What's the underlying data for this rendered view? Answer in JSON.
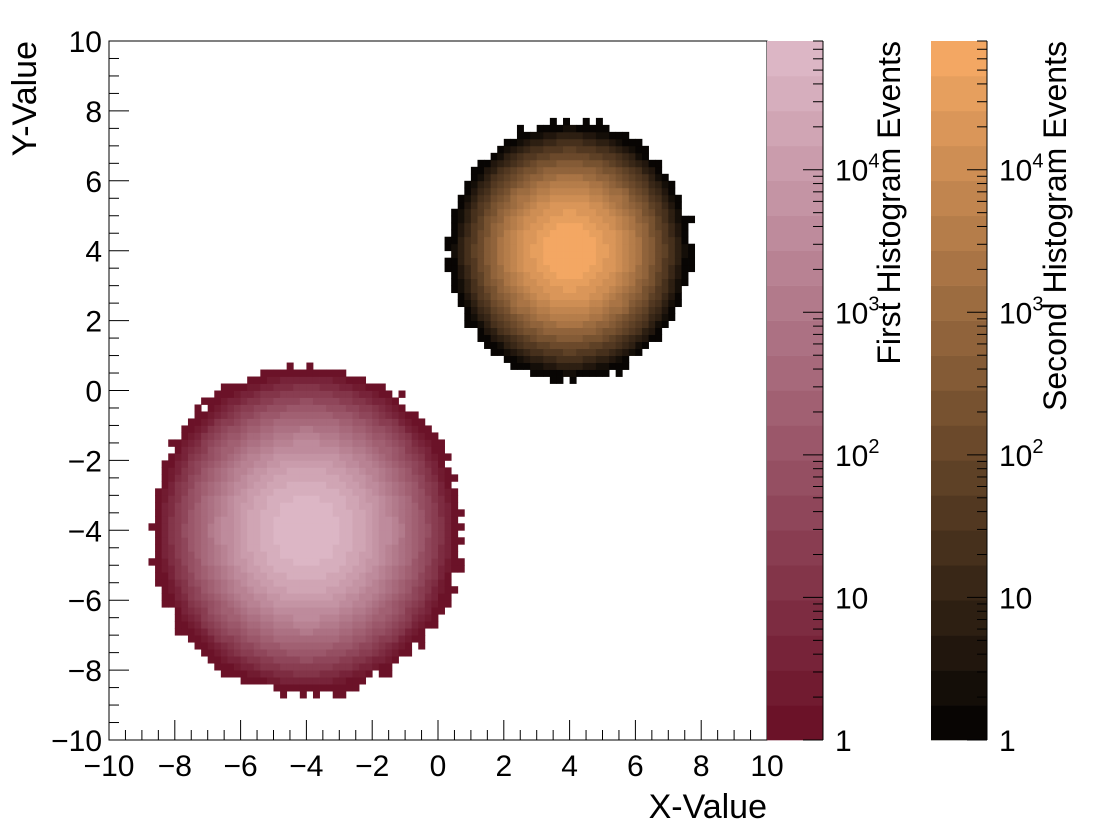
{
  "chart_data": {
    "type": "heatmap",
    "xlabel": "X-Value",
    "ylabel": "Y-Value",
    "xlim": [
      -10,
      10
    ],
    "ylim": [
      -10,
      10
    ],
    "x_ticks": [
      -10,
      -8,
      -6,
      -4,
      -2,
      0,
      2,
      4,
      6,
      8,
      10
    ],
    "y_ticks": [
      -10,
      -8,
      -6,
      -4,
      -2,
      0,
      2,
      4,
      6,
      8,
      10
    ],
    "x_tick_labels": [
      "−10",
      "−8",
      "−6",
      "−4",
      "−2",
      "0",
      "2",
      "4",
      "6",
      "8",
      "10"
    ],
    "y_tick_labels": [
      "−10",
      "−8",
      "−6",
      "−4",
      "−2",
      "0",
      "2",
      "4",
      "6",
      "8",
      "10"
    ],
    "log_z": true,
    "zlim": [
      1,
      80000
    ],
    "series": [
      {
        "name": "First Histogram Events",
        "center": [
          -4,
          -4
        ],
        "radius": 4.6,
        "peak": 80000,
        "color_low": "#6b1228",
        "color_high": "#e2bfcd"
      },
      {
        "name": "Second Histogram Events",
        "center": [
          4,
          4
        ],
        "radius": 3.6,
        "peak": 80000,
        "color_low": "#080503",
        "color_high": "#ffb068"
      }
    ],
    "colorbars": [
      {
        "label": "First Histogram Events",
        "tick_values": [
          1,
          10,
          100,
          1000,
          10000
        ],
        "tick_labels": [
          {
            "base": "1",
            "exp": ""
          },
          {
            "base": "10",
            "exp": ""
          },
          {
            "base": "10",
            "exp": "2"
          },
          {
            "base": "10",
            "exp": "3"
          },
          {
            "base": "10",
            "exp": "4"
          }
        ],
        "color_low": "#6b1228",
        "color_high": "#e2bfcd"
      },
      {
        "label": "Second Histogram Events",
        "tick_values": [
          1,
          10,
          100,
          1000,
          10000
        ],
        "tick_labels": [
          {
            "base": "1",
            "exp": ""
          },
          {
            "base": "10",
            "exp": ""
          },
          {
            "base": "10",
            "exp": "2"
          },
          {
            "base": "10",
            "exp": "3"
          },
          {
            "base": "10",
            "exp": "4"
          }
        ],
        "color_low": "#080503",
        "color_high": "#ffb068"
      }
    ]
  }
}
